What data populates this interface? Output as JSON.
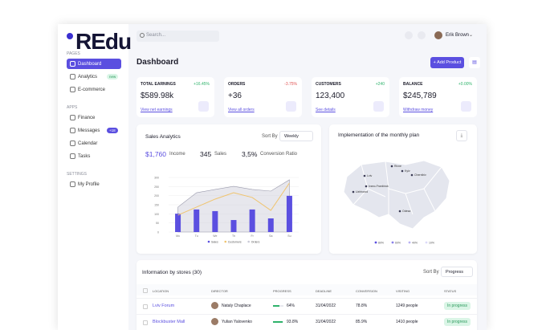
{
  "logo": "REdu",
  "search_placeholder": "Search...",
  "user": {
    "name": "Erik Brown"
  },
  "sidebar": {
    "sections": [
      {
        "title": "PAGES",
        "items": [
          {
            "label": "Dashboard"
          },
          {
            "label": "Analytics",
            "badge": "new"
          },
          {
            "label": "E-commerce"
          }
        ]
      },
      {
        "title": "APPS",
        "items": [
          {
            "label": "Finance"
          },
          {
            "label": "Messages",
            "badge": "+18"
          },
          {
            "label": "Calendar"
          },
          {
            "label": "Tasks"
          }
        ]
      },
      {
        "title": "SETTINGS",
        "items": [
          {
            "label": "My Profile"
          }
        ]
      }
    ]
  },
  "page_title": "Dashboard",
  "add_button": "+ Add Product",
  "kpis": [
    {
      "title": "TOTAL EARNINGS",
      "change": "+16.45%",
      "value": "$589.98k",
      "link": "View net earnings"
    },
    {
      "title": "ORDERS",
      "change": "-3.75%",
      "value": "+36",
      "link": "View all orders"
    },
    {
      "title": "CUSTOMERS",
      "change": "+240",
      "value": "123,400",
      "link": "See details"
    },
    {
      "title": "BALANCE",
      "change": "+0.00%",
      "value": "$245,789",
      "link": "Withdraw money"
    }
  ],
  "sales_analytics": {
    "title": "Sales Analytics",
    "sort_label": "Sort By",
    "sort_value": "Weekly",
    "stats": [
      {
        "value": "$1,760",
        "label": "Income"
      },
      {
        "value": "345",
        "label": "Sales"
      },
      {
        "value": "3,5%",
        "label": "Conversion Ratio"
      }
    ],
    "chart": {
      "type": "bar",
      "categories": [
        "Mo",
        "Tu",
        "We",
        "Th",
        "Fr",
        "Sa",
        "Su"
      ],
      "ylim": [
        0,
        300
      ],
      "yticks": [
        0,
        50,
        100,
        150,
        200,
        250,
        300
      ],
      "series": [
        {
          "name": "Sales",
          "color": "#5b4fe0",
          "values": [
            101,
            124,
            115,
            66,
            124,
            75,
            199
          ]
        },
        {
          "name": "Customers",
          "color": "#f0c46e",
          "values": [
            93,
            137,
            181,
            216,
            190,
            119,
            269
          ]
        },
        {
          "name": "Orders",
          "color": "#c9c9d6",
          "values": [
            137,
            216,
            234,
            251,
            234,
            225,
            287
          ]
        }
      ]
    }
  },
  "map": {
    "title": "Implementation of the monthly plan",
    "cities": [
      "Rivne",
      "Kyiv",
      "Lviv",
      "Chernihiv",
      "Ivano-Frankivsk",
      "Uzhhorod",
      "Odesa"
    ],
    "legend": [
      "80%",
      "60%",
      "40%",
      "10%"
    ]
  },
  "stores": {
    "title": "Information by stores (30)",
    "sort_label": "Sort By",
    "sort_value": "Progress",
    "columns": [
      "LOCATION",
      "DIRECTOR",
      "PROGRESS",
      "DEADLINE",
      "CONVERSION",
      "VISITING",
      "STATUS"
    ],
    "rows": [
      {
        "location": "Lviv Forum",
        "director": "Nataly Chaplace",
        "progress": {
          "value": 64,
          "label": "64%"
        },
        "deadline": "31/04/2022",
        "conversion": "78.8%",
        "visiting": "1249 people",
        "status": "In progress"
      },
      {
        "location": "Blockbuster Mall",
        "director": "Yulian Yalovenko",
        "progress": {
          "value": 93.8,
          "label": "93.8%"
        },
        "deadline": "31/04/2022",
        "conversion": "85.9%",
        "visiting": "1410 people",
        "status": "In progress"
      }
    ]
  }
}
